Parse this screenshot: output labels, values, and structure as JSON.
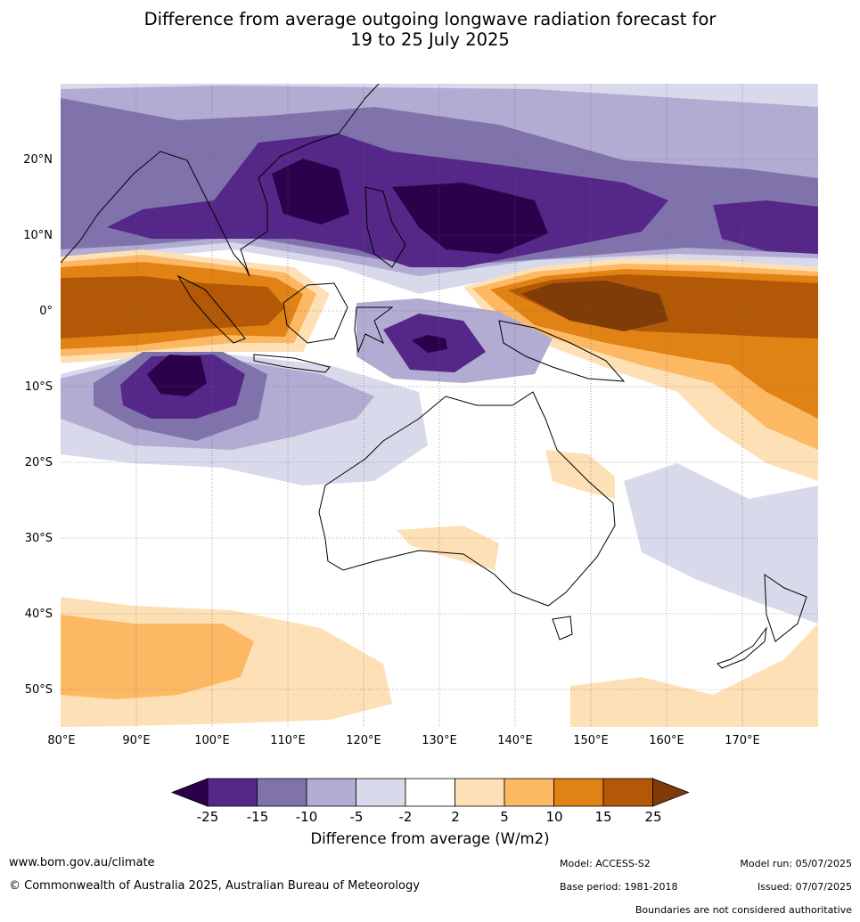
{
  "title": {
    "line1": "Difference from average outgoing longwave radiation forecast for",
    "line2": "19 to 25 July 2025"
  },
  "map": {
    "lon_labels": [
      "80°E",
      "90°E",
      "100°E",
      "110°E",
      "120°E",
      "130°E",
      "140°E",
      "150°E",
      "160°E",
      "170°E"
    ],
    "lat_labels": [
      "20°N",
      "10°N",
      "0°",
      "10°S",
      "20°S",
      "30°S",
      "40°S",
      "50°S"
    ],
    "lon_range": [
      80,
      180
    ],
    "lat_range": [
      -55,
      30
    ],
    "grid": true
  },
  "colorbar": {
    "title": "Difference from average (W/m2)",
    "levels": [
      "-25",
      "-15",
      "-10",
      "-5",
      "-2",
      "2",
      "5",
      "10",
      "15",
      "25"
    ],
    "colors": [
      "#2d004b",
      "#542788",
      "#8073ac",
      "#b2abd2",
      "#d8daeb",
      "#ffffff",
      "#fee0b6",
      "#fdb863",
      "#e08214",
      "#b35806",
      "#7f3b08"
    ]
  },
  "footer": {
    "site": "www.bom.gov.au/climate",
    "copyright": "© Commonwealth of Australia 2025, Australian Bureau of Meteorology",
    "model": "Model: ACCESS-S2",
    "base_period": "Base period: 1981-2018",
    "model_run": "Model run: 05/07/2025",
    "issued": "Issued: 07/07/2025",
    "disclaimer": "Boundaries are not considered authoritative"
  }
}
